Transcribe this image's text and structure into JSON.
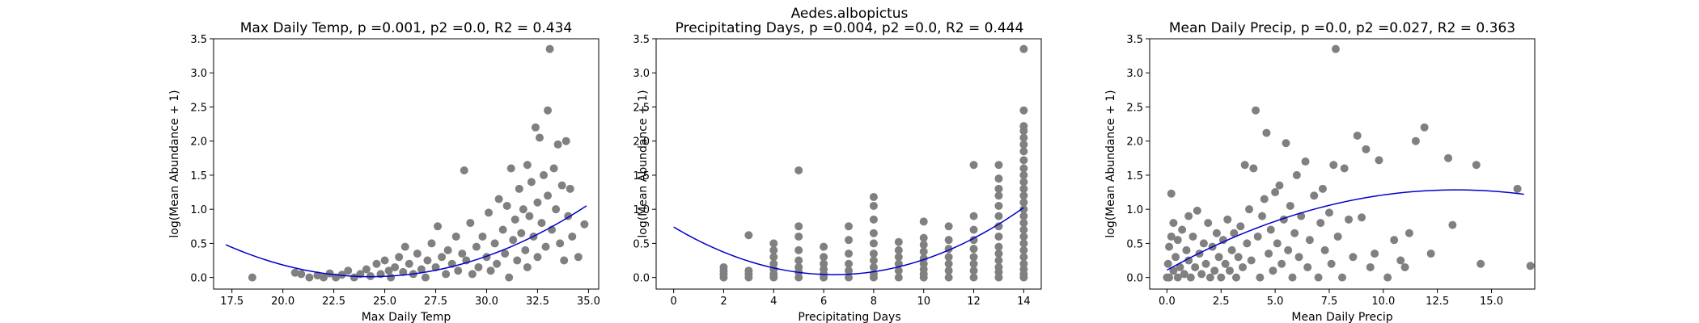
{
  "figure": {
    "suptitle": "Aedes.albopictus"
  },
  "style": {
    "point_color": "#808080",
    "fit_color": "#0000cc",
    "background": "#ffffff"
  },
  "chart_data": [
    {
      "type": "scatter",
      "title": "Max Daily Temp, p =0.001, p2 =0.0, R2 = 0.434",
      "xlabel": "Max Daily Temp",
      "ylabel": "log(Mean Abundance + 1)",
      "xlim": [
        16.6,
        35.5
      ],
      "ylim": [
        -0.17,
        3.5
      ],
      "xticks": [
        17.5,
        20.0,
        22.5,
        25.0,
        27.5,
        30.0,
        32.5,
        35.0
      ],
      "xtick_labels": [
        "17.5",
        "20.0",
        "22.5",
        "25.0",
        "27.5",
        "30.0",
        "32.5",
        "35.0"
      ],
      "yticks": [
        0.0,
        0.5,
        1.0,
        1.5,
        2.0,
        2.5,
        3.0,
        3.5
      ],
      "ytick_labels": [
        "0.0",
        "0.5",
        "1.0",
        "1.5",
        "2.0",
        "2.5",
        "3.0",
        "3.5"
      ],
      "fit": {
        "type": "quadratic",
        "x_range": [
          17.2,
          34.9
        ],
        "coefficients": [
          0.00926,
          -0.4502,
          5.484
        ]
      },
      "points": [
        [
          18.5,
          0.0
        ],
        [
          20.6,
          0.07
        ],
        [
          20.9,
          0.05
        ],
        [
          21.3,
          0.0
        ],
        [
          21.7,
          0.03
        ],
        [
          22.0,
          0.0
        ],
        [
          22.3,
          0.06
        ],
        [
          22.6,
          0.0
        ],
        [
          22.9,
          0.04
        ],
        [
          23.2,
          0.1
        ],
        [
          23.5,
          0.0
        ],
        [
          23.8,
          0.05
        ],
        [
          24.1,
          0.12
        ],
        [
          24.3,
          0.02
        ],
        [
          24.6,
          0.2
        ],
        [
          24.8,
          0.05
        ],
        [
          25.0,
          0.25
        ],
        [
          25.2,
          0.1
        ],
        [
          25.3,
          0.0
        ],
        [
          25.5,
          0.15
        ],
        [
          25.7,
          0.3
        ],
        [
          25.9,
          0.08
        ],
        [
          26.0,
          0.45
        ],
        [
          26.2,
          0.2
        ],
        [
          26.4,
          0.05
        ],
        [
          26.6,
          0.35
        ],
        [
          26.8,
          0.12
        ],
        [
          27.0,
          0.0
        ],
        [
          27.1,
          0.25
        ],
        [
          27.3,
          0.5
        ],
        [
          27.5,
          0.15
        ],
        [
          27.6,
          0.75
        ],
        [
          27.8,
          0.3
        ],
        [
          28.0,
          0.05
        ],
        [
          28.1,
          0.4
        ],
        [
          28.3,
          0.2
        ],
        [
          28.5,
          0.6
        ],
        [
          28.6,
          0.1
        ],
        [
          28.8,
          0.35
        ],
        [
          28.9,
          1.57
        ],
        [
          29.0,
          0.25
        ],
        [
          29.2,
          0.8
        ],
        [
          29.3,
          0.05
        ],
        [
          29.5,
          0.45
        ],
        [
          29.6,
          0.15
        ],
        [
          29.8,
          0.6
        ],
        [
          30.0,
          0.3
        ],
        [
          30.1,
          0.95
        ],
        [
          30.2,
          0.1
        ],
        [
          30.4,
          0.5
        ],
        [
          30.5,
          0.2
        ],
        [
          30.6,
          1.15
        ],
        [
          30.8,
          0.7
        ],
        [
          30.9,
          0.35
        ],
        [
          31.0,
          1.05
        ],
        [
          31.1,
          0.0
        ],
        [
          31.2,
          1.6
        ],
        [
          31.3,
          0.55
        ],
        [
          31.4,
          0.85
        ],
        [
          31.5,
          0.25
        ],
        [
          31.6,
          1.3
        ],
        [
          31.7,
          0.65
        ],
        [
          31.8,
          1.0
        ],
        [
          31.9,
          0.4
        ],
        [
          32.0,
          1.65
        ],
        [
          32.0,
          0.15
        ],
        [
          32.1,
          0.9
        ],
        [
          32.2,
          1.4
        ],
        [
          32.3,
          0.6
        ],
        [
          32.4,
          2.2
        ],
        [
          32.5,
          1.1
        ],
        [
          32.5,
          0.3
        ],
        [
          32.6,
          2.05
        ],
        [
          32.7,
          0.8
        ],
        [
          32.8,
          1.5
        ],
        [
          32.9,
          0.45
        ],
        [
          33.0,
          2.45
        ],
        [
          33.0,
          1.2
        ],
        [
          33.1,
          3.35
        ],
        [
          33.2,
          0.7
        ],
        [
          33.3,
          1.6
        ],
        [
          33.4,
          1.0
        ],
        [
          33.5,
          1.95
        ],
        [
          33.6,
          0.5
        ],
        [
          33.7,
          1.35
        ],
        [
          33.8,
          0.25
        ],
        [
          33.9,
          2.0
        ],
        [
          34.0,
          0.9
        ],
        [
          34.1,
          1.3
        ],
        [
          34.2,
          0.6
        ],
        [
          34.5,
          0.3
        ],
        [
          34.8,
          0.78
        ]
      ]
    },
    {
      "type": "scatter",
      "title": "Precipitating Days, p =0.004, p2 =0.0, R2 = 0.444",
      "xlabel": "Precipitating Days",
      "ylabel": "log(Mean Abundance + 1)",
      "xlim": [
        -0.7,
        14.7
      ],
      "ylim": [
        -0.17,
        3.5
      ],
      "xticks": [
        0,
        2,
        4,
        6,
        8,
        10,
        12,
        14
      ],
      "xtick_labels": [
        "0",
        "2",
        "4",
        "6",
        "8",
        "10",
        "12",
        "14"
      ],
      "yticks": [
        0.0,
        0.5,
        1.0,
        1.5,
        2.0,
        2.5,
        3.0,
        3.5
      ],
      "ytick_labels": [
        "0.0",
        "0.5",
        "1.0",
        "1.5",
        "2.0",
        "2.5",
        "3.0",
        "3.5"
      ],
      "fit": {
        "type": "quadratic",
        "x_range": [
          0,
          14
        ],
        "coefficients": [
          0.01703,
          -0.2181,
          0.74
        ]
      },
      "points": [
        [
          2,
          0.0
        ],
        [
          2,
          0.05
        ],
        [
          2,
          0.1
        ],
        [
          2,
          0.15
        ],
        [
          3,
          0.0
        ],
        [
          3,
          0.05
        ],
        [
          3,
          0.1
        ],
        [
          3,
          0.62
        ],
        [
          4,
          0.0
        ],
        [
          4,
          0.05
        ],
        [
          4,
          0.12
        ],
        [
          4,
          0.2
        ],
        [
          4,
          0.3
        ],
        [
          4,
          0.4
        ],
        [
          4,
          0.5
        ],
        [
          5,
          0.0
        ],
        [
          5,
          0.08
        ],
        [
          5,
          0.15
        ],
        [
          5,
          0.25
        ],
        [
          5,
          0.4
        ],
        [
          5,
          0.6
        ],
        [
          5,
          0.75
        ],
        [
          5,
          1.57
        ],
        [
          6,
          0.0
        ],
        [
          6,
          0.05
        ],
        [
          6,
          0.12
        ],
        [
          6,
          0.2
        ],
        [
          6,
          0.3
        ],
        [
          6,
          0.45
        ],
        [
          7,
          0.0
        ],
        [
          7,
          0.1
        ],
        [
          7,
          0.2
        ],
        [
          7,
          0.35
        ],
        [
          7,
          0.55
        ],
        [
          7,
          0.75
        ],
        [
          8,
          0.0
        ],
        [
          8,
          0.05
        ],
        [
          8,
          0.15
        ],
        [
          8,
          0.25
        ],
        [
          8,
          0.35
        ],
        [
          8,
          0.5
        ],
        [
          8,
          0.65
        ],
        [
          8,
          0.85
        ],
        [
          8,
          1.05
        ],
        [
          8,
          1.18
        ],
        [
          9,
          0.0
        ],
        [
          9,
          0.1
        ],
        [
          9,
          0.2
        ],
        [
          9,
          0.3
        ],
        [
          9,
          0.4
        ],
        [
          9,
          0.52
        ],
        [
          10,
          0.0
        ],
        [
          10,
          0.05
        ],
        [
          10,
          0.12
        ],
        [
          10,
          0.2
        ],
        [
          10,
          0.28
        ],
        [
          10,
          0.38
        ],
        [
          10,
          0.48
        ],
        [
          10,
          0.58
        ],
        [
          10,
          0.82
        ],
        [
          11,
          0.0
        ],
        [
          11,
          0.1
        ],
        [
          11,
          0.2
        ],
        [
          11,
          0.3
        ],
        [
          11,
          0.42
        ],
        [
          11,
          0.55
        ],
        [
          11,
          0.75
        ],
        [
          12,
          0.0
        ],
        [
          12,
          0.1
        ],
        [
          12,
          0.2
        ],
        [
          12,
          0.3
        ],
        [
          12,
          0.42
        ],
        [
          12,
          0.55
        ],
        [
          12,
          0.7
        ],
        [
          12,
          0.9
        ],
        [
          12,
          1.65
        ],
        [
          13,
          0.0
        ],
        [
          13,
          0.08
        ],
        [
          13,
          0.15
        ],
        [
          13,
          0.25
        ],
        [
          13,
          0.35
        ],
        [
          13,
          0.45
        ],
        [
          13,
          0.6
        ],
        [
          13,
          0.75
        ],
        [
          13,
          0.9
        ],
        [
          13,
          1.05
        ],
        [
          13,
          1.2
        ],
        [
          13,
          1.3
        ],
        [
          13,
          1.45
        ],
        [
          13,
          1.65
        ],
        [
          14,
          0.0
        ],
        [
          14,
          0.05
        ],
        [
          14,
          0.12
        ],
        [
          14,
          0.2
        ],
        [
          14,
          0.3
        ],
        [
          14,
          0.4
        ],
        [
          14,
          0.5
        ],
        [
          14,
          0.6
        ],
        [
          14,
          0.7
        ],
        [
          14,
          0.8
        ],
        [
          14,
          0.9
        ],
        [
          14,
          1.0
        ],
        [
          14,
          1.1
        ],
        [
          14,
          1.2
        ],
        [
          14,
          1.3
        ],
        [
          14,
          1.4
        ],
        [
          14,
          1.5
        ],
        [
          14,
          1.6
        ],
        [
          14,
          1.72
        ],
        [
          14,
          1.85
        ],
        [
          14,
          1.95
        ],
        [
          14,
          2.05
        ],
        [
          14,
          2.15
        ],
        [
          14,
          2.22
        ],
        [
          14,
          2.45
        ],
        [
          14,
          3.35
        ]
      ]
    },
    {
      "type": "scatter",
      "title": "Mean Daily Precip, p =0.0, p2 =0.027, R2 = 0.363",
      "xlabel": "Mean Daily Precip",
      "ylabel": "log(Mean Abundance + 1)",
      "xlim": [
        -0.8,
        17.0
      ],
      "ylim": [
        -0.17,
        3.5
      ],
      "xticks": [
        0.0,
        2.5,
        5.0,
        7.5,
        10.0,
        12.5,
        15.0
      ],
      "xtick_labels": [
        "0.0",
        "2.5",
        "5.0",
        "7.5",
        "10.0",
        "12.5",
        "15.0"
      ],
      "yticks": [
        0.0,
        0.5,
        1.0,
        1.5,
        2.0,
        2.5,
        3.0,
        3.5
      ],
      "ytick_labels": [
        "0.0",
        "0.5",
        "1.0",
        "1.5",
        "2.0",
        "2.5",
        "3.0",
        "3.5"
      ],
      "fit": {
        "type": "quadratic",
        "x_range": [
          0.0,
          16.5
        ],
        "coefficients": [
          -0.00659,
          0.1761,
          0.108
        ]
      },
      "points": [
        [
          0.0,
          0.0
        ],
        [
          0.05,
          0.2
        ],
        [
          0.1,
          0.45
        ],
        [
          0.1,
          0.0
        ],
        [
          0.2,
          1.23
        ],
        [
          0.2,
          0.6
        ],
        [
          0.3,
          0.1
        ],
        [
          0.3,
          0.8
        ],
        [
          0.4,
          0.3
        ],
        [
          0.5,
          0.0
        ],
        [
          0.5,
          0.55
        ],
        [
          0.6,
          0.15
        ],
        [
          0.7,
          0.7
        ],
        [
          0.8,
          0.05
        ],
        [
          0.9,
          0.4
        ],
        [
          1.0,
          0.25
        ],
        [
          1.0,
          0.9
        ],
        [
          1.1,
          0.0
        ],
        [
          1.2,
          0.6
        ],
        [
          1.3,
          0.15
        ],
        [
          1.4,
          0.98
        ],
        [
          1.5,
          0.35
        ],
        [
          1.6,
          0.05
        ],
        [
          1.7,
          0.5
        ],
        [
          1.8,
          0.2
        ],
        [
          1.9,
          0.8
        ],
        [
          2.0,
          0.0
        ],
        [
          2.1,
          0.45
        ],
        [
          2.2,
          0.1
        ],
        [
          2.3,
          0.65
        ],
        [
          2.4,
          0.3
        ],
        [
          2.5,
          0.0
        ],
        [
          2.6,
          0.55
        ],
        [
          2.7,
          0.2
        ],
        [
          2.8,
          0.85
        ],
        [
          2.9,
          0.1
        ],
        [
          3.0,
          0.4
        ],
        [
          3.1,
          0.65
        ],
        [
          3.2,
          0.0
        ],
        [
          3.3,
          0.3
        ],
        [
          3.4,
          0.75
        ],
        [
          3.5,
          0.15
        ],
        [
          3.6,
          1.65
        ],
        [
          3.7,
          0.5
        ],
        [
          3.8,
          1.0
        ],
        [
          3.9,
          0.25
        ],
        [
          4.0,
          1.6
        ],
        [
          4.1,
          2.45
        ],
        [
          4.2,
          0.6
        ],
        [
          4.3,
          0.0
        ],
        [
          4.4,
          0.9
        ],
        [
          4.5,
          1.15
        ],
        [
          4.6,
          2.12
        ],
        [
          4.7,
          0.35
        ],
        [
          4.8,
          0.7
        ],
        [
          4.9,
          0.1
        ],
        [
          5.0,
          1.25
        ],
        [
          5.1,
          0.5
        ],
        [
          5.2,
          1.35
        ],
        [
          5.3,
          0.2
        ],
        [
          5.4,
          0.85
        ],
        [
          5.5,
          1.97
        ],
        [
          5.6,
          0.4
        ],
        [
          5.7,
          1.05
        ],
        [
          5.8,
          0.0
        ],
        [
          5.9,
          0.65
        ],
        [
          6.0,
          1.5
        ],
        [
          6.1,
          0.3
        ],
        [
          6.2,
          0.9
        ],
        [
          6.4,
          1.7
        ],
        [
          6.5,
          0.15
        ],
        [
          6.6,
          0.55
        ],
        [
          6.8,
          1.2
        ],
        [
          7.0,
          0.0
        ],
        [
          7.1,
          0.8
        ],
        [
          7.2,
          1.3
        ],
        [
          7.3,
          0.4
        ],
        [
          7.5,
          0.95
        ],
        [
          7.6,
          0.2
        ],
        [
          7.7,
          1.65
        ],
        [
          7.8,
          3.35
        ],
        [
          7.9,
          0.6
        ],
        [
          8.1,
          0.0
        ],
        [
          8.2,
          1.6
        ],
        [
          8.4,
          0.85
        ],
        [
          8.6,
          0.3
        ],
        [
          8.8,
          2.08
        ],
        [
          9.0,
          0.88
        ],
        [
          9.2,
          1.88
        ],
        [
          9.4,
          0.15
        ],
        [
          9.6,
          0.35
        ],
        [
          9.8,
          1.72
        ],
        [
          10.2,
          0.0
        ],
        [
          10.5,
          0.55
        ],
        [
          10.8,
          0.25
        ],
        [
          11.0,
          0.15
        ],
        [
          11.2,
          0.65
        ],
        [
          11.5,
          2.0
        ],
        [
          11.9,
          2.2
        ],
        [
          12.2,
          0.35
        ],
        [
          13.0,
          1.75
        ],
        [
          13.2,
          0.77
        ],
        [
          14.3,
          1.65
        ],
        [
          14.5,
          0.2
        ],
        [
          16.2,
          1.3
        ],
        [
          16.8,
          0.17
        ]
      ]
    }
  ]
}
